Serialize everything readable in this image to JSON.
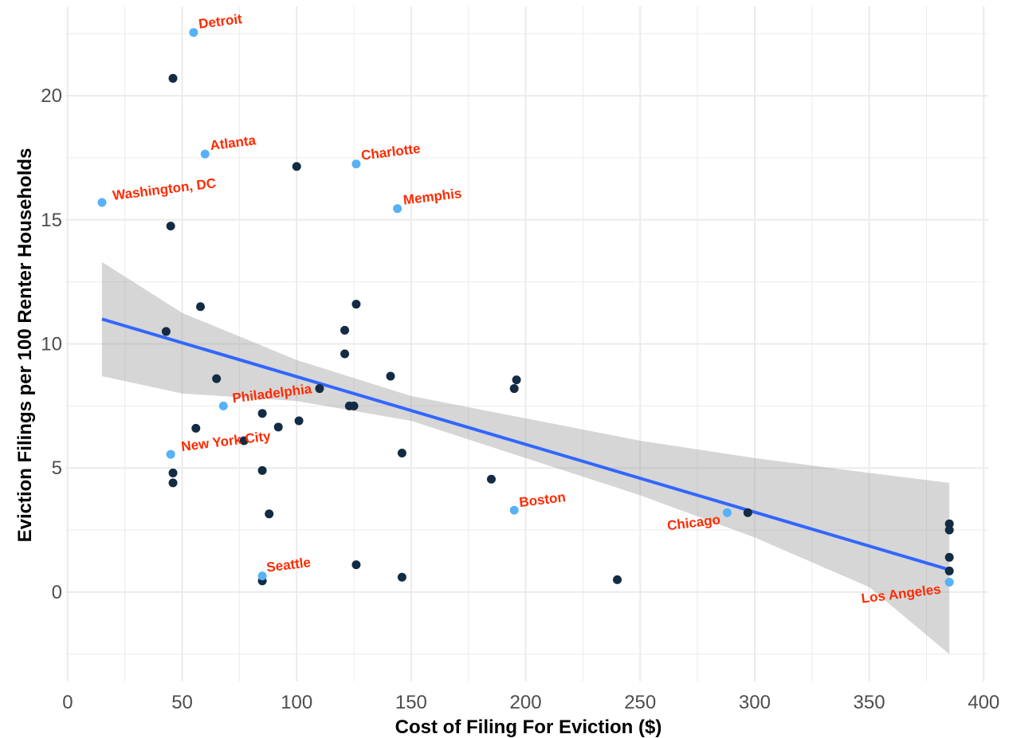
{
  "chart_data": {
    "type": "scatter",
    "title": "",
    "xlabel": "Cost of Filing For Eviction ($)",
    "ylabel": "Eviction Filings per 100 Renter Households",
    "xlim": [
      -1,
      402
    ],
    "ylim": [
      -3.6,
      23.6
    ],
    "xticks": [
      0,
      50,
      100,
      150,
      200,
      250,
      300,
      350,
      400
    ],
    "yticks": [
      0,
      5,
      10,
      15,
      20
    ],
    "grid": true,
    "legend": "none",
    "colors": {
      "point": "#132b43",
      "highlight": "#56b1f7",
      "label": "#ff2a00",
      "trend": "#3366ff",
      "band": "#999999",
      "grid": "#ebebeb",
      "tick_text": "#4d4d4d"
    },
    "points": [
      {
        "x": 46,
        "y": 20.7
      },
      {
        "x": 45,
        "y": 14.75
      },
      {
        "x": 100,
        "y": 17.15
      },
      {
        "x": 126,
        "y": 11.6
      },
      {
        "x": 58,
        "y": 11.5
      },
      {
        "x": 43,
        "y": 10.5
      },
      {
        "x": 121,
        "y": 10.55
      },
      {
        "x": 121,
        "y": 9.6
      },
      {
        "x": 65,
        "y": 8.6
      },
      {
        "x": 141,
        "y": 8.7
      },
      {
        "x": 196,
        "y": 8.55
      },
      {
        "x": 195,
        "y": 8.2
      },
      {
        "x": 110,
        "y": 8.2
      },
      {
        "x": 123,
        "y": 7.5
      },
      {
        "x": 125,
        "y": 7.5
      },
      {
        "x": 85,
        "y": 7.2
      },
      {
        "x": 101,
        "y": 6.9
      },
      {
        "x": 92,
        "y": 6.65
      },
      {
        "x": 56,
        "y": 6.6
      },
      {
        "x": 77,
        "y": 6.1
      },
      {
        "x": 146,
        "y": 5.6
      },
      {
        "x": 46,
        "y": 4.8
      },
      {
        "x": 85,
        "y": 4.9
      },
      {
        "x": 46,
        "y": 4.4
      },
      {
        "x": 185,
        "y": 4.55
      },
      {
        "x": 88,
        "y": 3.15
      },
      {
        "x": 297,
        "y": 3.2
      },
      {
        "x": 385,
        "y": 2.75
      },
      {
        "x": 385,
        "y": 2.5
      },
      {
        "x": 385,
        "y": 1.4
      },
      {
        "x": 385,
        "y": 0.85
      },
      {
        "x": 126,
        "y": 1.1
      },
      {
        "x": 146,
        "y": 0.6
      },
      {
        "x": 240,
        "y": 0.5
      },
      {
        "x": 85,
        "y": 0.45
      }
    ],
    "highlighted": [
      {
        "city": "Detroit",
        "x": 55,
        "y": 22.55
      },
      {
        "city": "Atlanta",
        "x": 60,
        "y": 17.65
      },
      {
        "city": "Charlotte",
        "x": 126,
        "y": 17.25
      },
      {
        "city": "Washington, DC",
        "x": 15,
        "y": 15.7
      },
      {
        "city": "Memphis",
        "x": 144,
        "y": 15.45
      },
      {
        "city": "Philadelphia",
        "x": 68,
        "y": 7.5
      },
      {
        "city": "New York City",
        "x": 45,
        "y": 5.55
      },
      {
        "city": "Boston",
        "x": 195,
        "y": 3.3
      },
      {
        "city": "Chicago",
        "x": 288,
        "y": 3.2
      },
      {
        "city": "Seattle",
        "x": 85,
        "y": 0.65
      },
      {
        "city": "Los Angeles",
        "x": 385,
        "y": 0.4
      }
    ],
    "trend_line": {
      "x0": 15,
      "y0": 11.0,
      "x1": 385,
      "y1": 0.9
    },
    "confidence_band": {
      "x": [
        15,
        50,
        100,
        150,
        200,
        250,
        300,
        350,
        385
      ],
      "upper": [
        13.3,
        11.25,
        9.35,
        7.9,
        7.0,
        6.1,
        5.4,
        4.8,
        4.4
      ],
      "lower": [
        8.7,
        8.0,
        7.7,
        6.9,
        5.4,
        3.9,
        2.2,
        0.2,
        -2.5
      ]
    }
  }
}
